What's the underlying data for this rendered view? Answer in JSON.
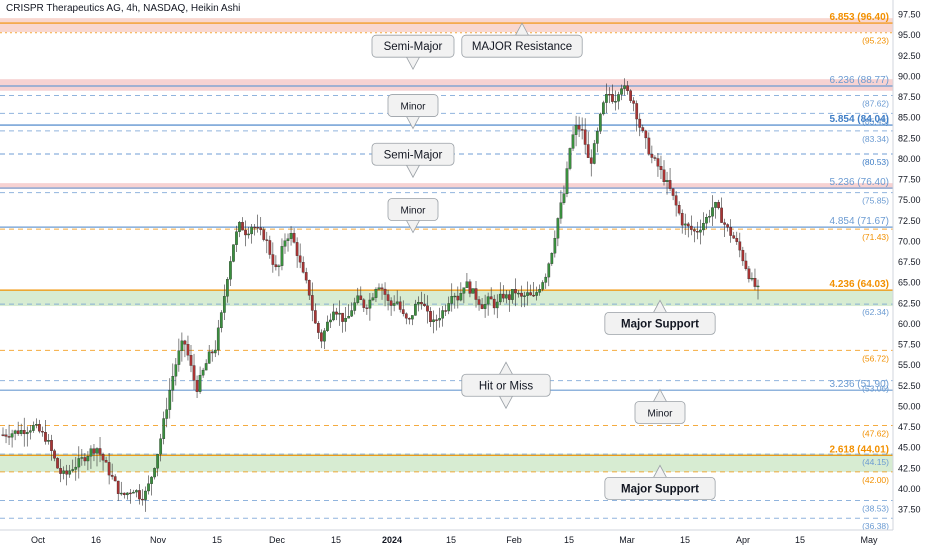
{
  "header": {
    "title": "CRISPR Therapeutics AG, 4h, NASDAQ, Heikin Ashi"
  },
  "colors": {
    "up": "#26a69a",
    "down": "#ef5350",
    "candle_up": "#3a8f3e",
    "candle_down": "#a83434",
    "orange": "#f29000",
    "blue": "#6b9bd2",
    "red": "#e57373",
    "green_zone": "#d7ecd2",
    "red_zone": "#f7d2d2",
    "axis_text": "#131722"
  },
  "chart_data": {
    "type": "candlestick",
    "title": "CRISPR Therapeutics AG, 4h, NASDAQ, Heikin Ashi",
    "ylim": [
      36,
      98
    ],
    "x_tick_labels": [
      "Oct",
      "16",
      "Nov",
      "15",
      "Dec",
      "15",
      "2024",
      "15",
      "Feb",
      "15",
      "Mar",
      "15",
      "Apr",
      "15",
      "May"
    ],
    "y_tick_labels": [
      "97.50",
      "95.00",
      "92.50",
      "90.00",
      "87.50",
      "85.00",
      "82.50",
      "80.00",
      "77.50",
      "75.00",
      "72.50",
      "70.00",
      "67.50",
      "65.00",
      "62.50",
      "60.00",
      "57.50",
      "55.00",
      "52.50",
      "50.00",
      "47.50",
      "45.00",
      "42.50",
      "40.00",
      "37.50"
    ],
    "y_ticks": [
      97.5,
      95,
      92.5,
      90,
      87.5,
      85,
      82.5,
      80,
      77.5,
      75,
      72.5,
      70,
      67.5,
      65,
      62.5,
      60,
      57.5,
      55,
      52.5,
      50,
      47.5,
      45,
      42.5,
      40,
      37.5
    ],
    "price_path": [
      [
        0,
        46.5
      ],
      [
        3,
        47
      ],
      [
        5,
        47.5
      ],
      [
        7,
        46
      ],
      [
        8,
        44
      ],
      [
        9,
        42
      ],
      [
        10,
        41.5
      ],
      [
        11,
        42.5
      ],
      [
        12,
        43
      ],
      [
        14,
        44.5
      ],
      [
        15,
        45
      ],
      [
        16,
        43.5
      ],
      [
        17,
        42
      ],
      [
        18,
        40.5
      ],
      [
        19,
        39
      ],
      [
        20,
        39.5
      ],
      [
        21,
        40
      ],
      [
        22,
        39
      ],
      [
        23,
        39.5
      ],
      [
        24,
        42
      ],
      [
        25,
        45
      ],
      [
        26,
        49
      ],
      [
        27,
        53
      ],
      [
        28,
        56
      ],
      [
        29,
        58
      ],
      [
        30,
        55
      ],
      [
        31,
        52
      ],
      [
        32,
        54
      ],
      [
        33,
        56
      ],
      [
        34,
        57
      ],
      [
        35,
        61
      ],
      [
        36,
        66
      ],
      [
        37,
        70
      ],
      [
        38,
        72
      ],
      [
        39,
        71
      ],
      [
        40,
        72
      ],
      [
        41,
        71
      ],
      [
        42,
        70.5
      ],
      [
        43,
        68
      ],
      [
        44,
        66
      ],
      [
        45,
        70
      ],
      [
        46,
        71
      ],
      [
        47,
        69
      ],
      [
        48,
        66
      ],
      [
        49,
        64
      ],
      [
        50,
        60
      ],
      [
        51,
        58
      ],
      [
        52,
        60
      ],
      [
        53,
        62
      ],
      [
        54,
        61
      ],
      [
        55,
        60
      ],
      [
        56,
        62
      ],
      [
        57,
        63
      ],
      [
        58,
        62
      ],
      [
        59,
        63
      ],
      [
        60,
        65
      ],
      [
        61,
        64
      ],
      [
        62,
        62
      ],
      [
        63,
        63
      ],
      [
        64,
        61
      ],
      [
        65,
        60
      ],
      [
        66,
        62
      ],
      [
        67,
        63
      ],
      [
        68,
        61
      ],
      [
        69,
        60
      ],
      [
        70,
        61
      ],
      [
        71,
        62
      ],
      [
        72,
        64
      ],
      [
        73,
        63
      ],
      [
        74,
        65
      ],
      [
        75,
        64
      ],
      [
        76,
        63
      ],
      [
        77,
        62
      ],
      [
        78,
        63
      ],
      [
        79,
        62
      ],
      [
        80,
        63.5
      ],
      [
        81,
        63
      ],
      [
        82,
        64
      ],
      [
        83,
        63
      ],
      [
        84,
        63.5
      ],
      [
        85,
        63
      ],
      [
        86,
        64.5
      ],
      [
        87,
        66
      ],
      [
        88,
        69
      ],
      [
        89,
        73
      ],
      [
        90,
        76
      ],
      [
        91,
        82
      ],
      [
        92,
        84
      ],
      [
        93,
        83
      ],
      [
        94,
        79
      ],
      [
        95,
        82
      ],
      [
        96,
        86
      ],
      [
        97,
        88
      ],
      [
        98,
        87
      ],
      [
        99,
        89
      ],
      [
        100,
        88
      ],
      [
        101,
        87
      ],
      [
        102,
        84
      ],
      [
        103,
        82
      ],
      [
        104,
        80
      ],
      [
        105,
        79
      ],
      [
        106,
        77.5
      ],
      [
        107,
        76
      ],
      [
        108,
        74
      ],
      [
        109,
        72
      ],
      [
        110,
        71.5
      ],
      [
        111,
        71
      ],
      [
        112,
        72
      ],
      [
        113,
        73
      ],
      [
        114,
        74.5
      ],
      [
        115,
        73
      ],
      [
        116,
        71.5
      ],
      [
        117,
        70.5
      ],
      [
        118,
        69
      ],
      [
        119,
        67
      ],
      [
        120,
        65
      ],
      [
        121,
        64
      ]
    ],
    "levels": [
      {
        "price": 96.4,
        "label": "6.853 (96.40)",
        "color": "#f29000",
        "style": "solid",
        "show_label": true
      },
      {
        "price": 95.23,
        "label": "(95.23)",
        "color": "#f29000",
        "style": "dotted",
        "show_label": true
      },
      {
        "price": 88.77,
        "label": "6.236 (88.77)",
        "color": "#6b9bd2",
        "style": "solid",
        "show_label": true
      },
      {
        "price": 87.62,
        "label": "(87.62)",
        "color": "#6b9bd2",
        "style": "dashed",
        "show_label": true
      },
      {
        "price": 85.45,
        "label": "(85.45)",
        "color": "#6b9bd2",
        "style": "dashed",
        "show_label": true
      },
      {
        "price": 84.04,
        "label": "5.854 (84.04)",
        "color": "#3f7ec6",
        "style": "solid",
        "show_label": true
      },
      {
        "price": 83.34,
        "label": "(83.34)",
        "color": "#6b9bd2",
        "style": "dashed",
        "show_label": true
      },
      {
        "price": 80.53,
        "label": "(80.53)",
        "color": "#3f7ec6",
        "style": "dashed",
        "show_label": true
      },
      {
        "price": 76.4,
        "label": "5.236 (76.40)",
        "color": "#6b9bd2",
        "style": "solid",
        "show_label": true
      },
      {
        "price": 75.85,
        "label": "(75.85)",
        "color": "#6b9bd2",
        "style": "dashed",
        "show_label": true
      },
      {
        "price": 71.67,
        "label": "4.854 (71.67)",
        "color": "#6b9bd2",
        "style": "solid",
        "show_label": true
      },
      {
        "price": 71.43,
        "label": "(71.43)",
        "color": "#f29000",
        "style": "dashed",
        "show_label": true
      },
      {
        "price": 64.03,
        "label": "4.236 (64.03)",
        "color": "#f29000",
        "style": "solid",
        "show_label": true
      },
      {
        "price": 62.34,
        "label": "(62.34)",
        "color": "#6b9bd2",
        "style": "dashed",
        "show_label": true
      },
      {
        "price": 56.72,
        "label": "(56.72)",
        "color": "#f29000",
        "style": "dashed",
        "show_label": true
      },
      {
        "price": 53.06,
        "label": "(53.06)",
        "color": "#6b9bd2",
        "style": "dashed",
        "show_label": true
      },
      {
        "price": 51.9,
        "label": "3.236 (51.90)",
        "color": "#6b9bd2",
        "style": "solid",
        "show_label": true
      },
      {
        "price": 47.62,
        "label": "(47.62)",
        "color": "#f29000",
        "style": "dashed",
        "show_label": true
      },
      {
        "price": 44.01,
        "label": "2.618 (44.01)",
        "color": "#f29000",
        "style": "solid",
        "show_label": true
      },
      {
        "price": 44.15,
        "label": "(44.15)",
        "color": "#6b9bd2",
        "style": "dashed",
        "show_label": true
      },
      {
        "price": 42.0,
        "label": "(42.00)",
        "color": "#f29000",
        "style": "dashed",
        "show_label": true
      },
      {
        "price": 38.53,
        "label": "(38.53)",
        "color": "#6b9bd2",
        "style": "dashed",
        "show_label": true
      },
      {
        "price": 36.38,
        "label": "(36.38)",
        "color": "#6b9bd2",
        "style": "dashed",
        "show_label": true
      }
    ],
    "zones": [
      {
        "top": 97.0,
        "bottom": 95.3,
        "color": "#f9d7cf"
      },
      {
        "top": 89.6,
        "bottom": 88.2,
        "color": "#f7d2d2"
      },
      {
        "top": 77.0,
        "bottom": 76.3,
        "color": "#f7d2d2"
      },
      {
        "top": 64.03,
        "bottom": 62.1,
        "color": "#d7ecd2"
      },
      {
        "top": 44.2,
        "bottom": 42.0,
        "color": "#d7ecd2"
      }
    ],
    "annotations": [
      {
        "text": "Semi-Major",
        "bold": false,
        "price": 93.6,
        "pointer": "down"
      },
      {
        "text": "MAJOR Resistance",
        "bold": false,
        "price": 93.6,
        "pointer": "up"
      },
      {
        "text": "Minor",
        "bold": false,
        "price": 86.4,
        "pointer": "down"
      },
      {
        "text": "Semi-Major",
        "bold": false,
        "price": 80.5,
        "pointer": "down"
      },
      {
        "text": "Minor",
        "bold": false,
        "price": 73.8,
        "pointer": "down"
      },
      {
        "text": "Major Support",
        "bold": true,
        "price": 60.0,
        "pointer": "up"
      },
      {
        "text": "Hit or Miss",
        "bold": false,
        "price": 52.5,
        "pointer": "both"
      },
      {
        "text": "Minor",
        "bold": false,
        "price": 49.2,
        "pointer": "up"
      },
      {
        "text": "Major Support",
        "bold": true,
        "price": 40.0,
        "pointer": "up"
      }
    ]
  }
}
